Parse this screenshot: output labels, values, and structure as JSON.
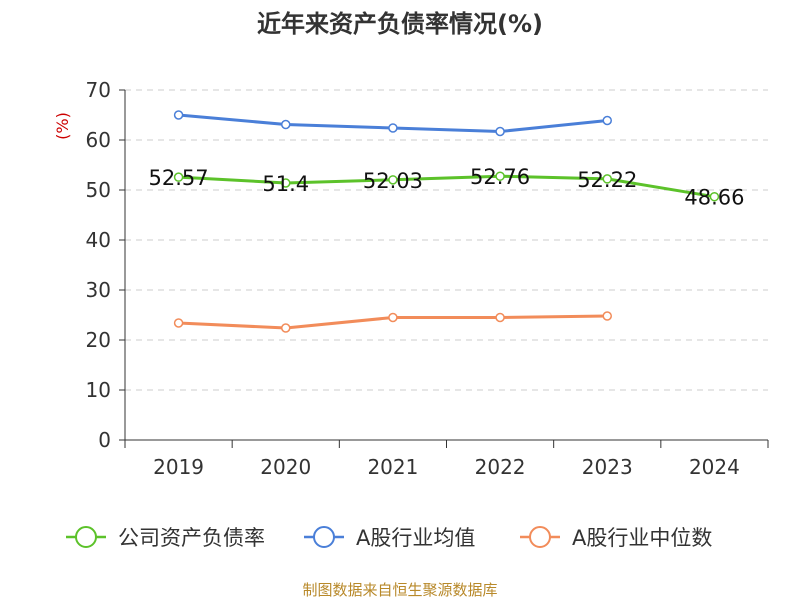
{
  "chart_data": {
    "type": "line",
    "title": "近年来资产负债率情况(%)",
    "ylabel": "(%)",
    "xlabel": "",
    "categories": [
      "2019",
      "2020",
      "2021",
      "2022",
      "2023",
      "2024"
    ],
    "ylim": [
      0,
      70
    ],
    "yticks": [
      "0",
      "10",
      "20",
      "30",
      "40",
      "50",
      "60",
      "70"
    ],
    "grid": true,
    "legend_position": "bottom",
    "series": [
      {
        "name": "公司资产负债率",
        "color": "#5cc22a",
        "values": [
          52.57,
          51.4,
          52.03,
          52.76,
          52.22,
          48.66
        ],
        "labels": [
          "52.57",
          "51.4",
          "52.03",
          "52.76",
          "52.22",
          "48.66"
        ]
      },
      {
        "name": "A股行业均值",
        "color": "#4a7fd8",
        "values": [
          65.0,
          63.1,
          62.4,
          61.7,
          63.9,
          null
        ]
      },
      {
        "name": "A股行业中位数",
        "color": "#f28c5a",
        "values": [
          23.4,
          22.4,
          24.5,
          24.5,
          24.8,
          null
        ]
      }
    ]
  },
  "footer": "制图数据来自恒生聚源数据库"
}
